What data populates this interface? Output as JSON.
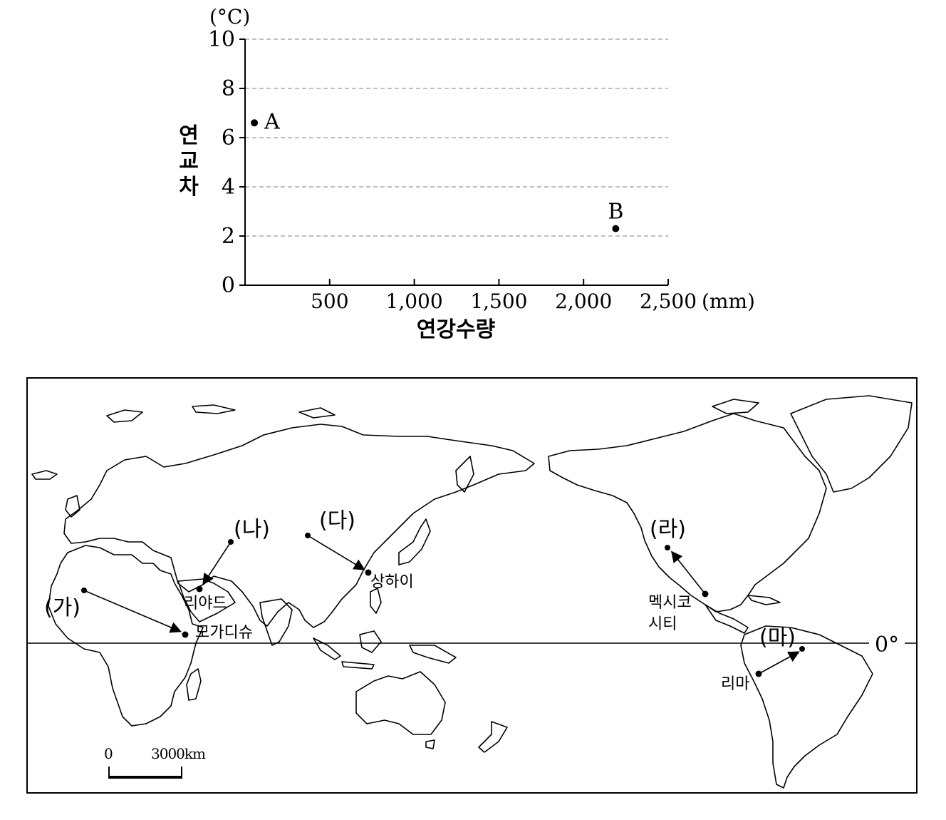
{
  "chart_data": {
    "type": "scatter",
    "xlabel": "연강수량",
    "ylabel": "연교차",
    "x_unit": "(mm)",
    "y_unit": "(°C)",
    "xlim": [
      0,
      2500
    ],
    "ylim": [
      0,
      10
    ],
    "x_ticks": [
      500,
      1000,
      1500,
      2000,
      2500
    ],
    "x_tick_labels": [
      "500",
      "1,000",
      "1,500",
      "2,000",
      "2,500"
    ],
    "y_ticks": [
      0,
      2,
      4,
      6,
      8,
      10
    ],
    "y_tick_labels": [
      "0",
      "2",
      "4",
      "6",
      "8",
      "10"
    ],
    "grid": "horizontal dashed",
    "points": [
      {
        "label": "A",
        "x": 55,
        "y": 6.6
      },
      {
        "label": "B",
        "x": 2190,
        "y": 2.3
      }
    ]
  },
  "map": {
    "equator_label": "0°",
    "scale": {
      "zero": "0",
      "distance": "3000km"
    },
    "markers": {
      "ga": "(가)",
      "na": "(나)",
      "da": "(다)",
      "ra": "(라)",
      "ma": "(마)"
    },
    "cities": {
      "mogadishu": "모가디슈",
      "riyadh": "리야드",
      "shanghai": "상하이",
      "mexico_line1": "멕시코",
      "mexico_line2": "시티",
      "lima": "리마"
    }
  }
}
